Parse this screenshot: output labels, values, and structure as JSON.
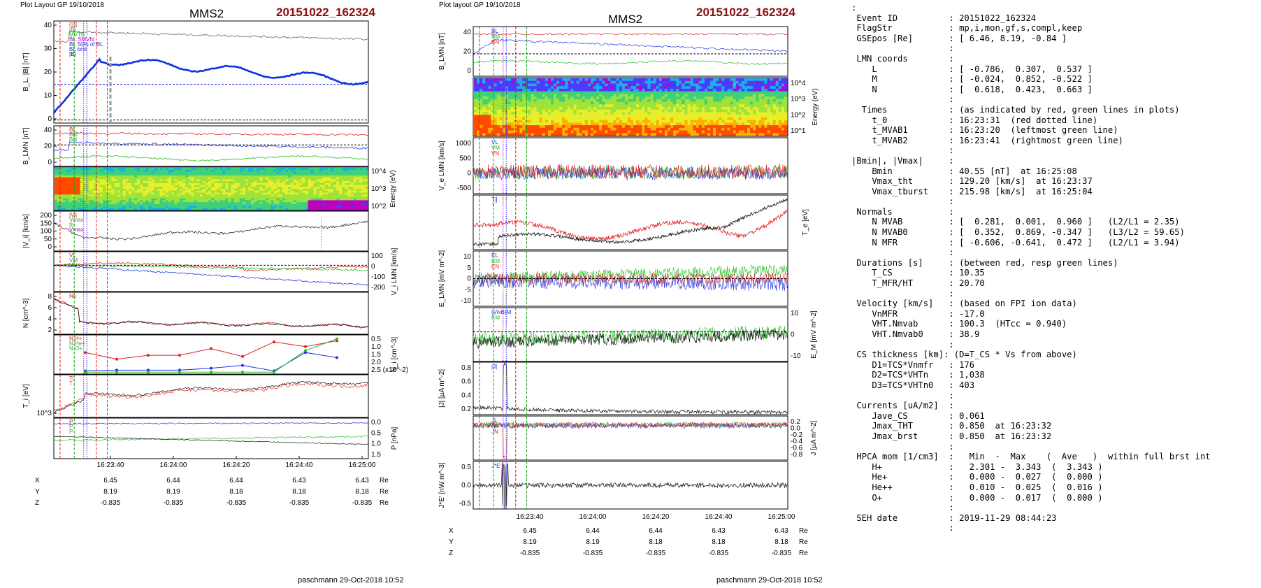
{
  "left": {
    "layout_label": "Plot Layout GP 19/10/2018",
    "mission": "MMS2",
    "event": "20151022_162324",
    "footer": "paschmann 29-Oct-2018 10:52",
    "panels": [
      {
        "id": "p1",
        "ylabel": "B_L, |B| [nT]",
        "ticks": [
          "0",
          "10",
          "20",
          "30",
          "40"
        ],
        "ymin": 0,
        "ymax": 48,
        "legend": [
          "GS",
          "|B|",
          "MVTB",
          "BL.SMVN",
          "BL 50% of BL",
          "BL brst",
          "|B|"
        ]
      },
      {
        "id": "p2",
        "ylabel": "B_LMN [nT]",
        "ticks": [
          "0",
          "20",
          "40"
        ],
        "ymin": -15,
        "ymax": 48,
        "legend": [
          "BL",
          "BM",
          "BN"
        ]
      },
      {
        "id": "p3",
        "ylabel": "Energy (eV)",
        "ticks_right": [
          "10^4",
          "10^3",
          "10^2"
        ],
        "spectrogram": true
      },
      {
        "id": "p4",
        "ylabel": "|V_i| [km/s]",
        "ticks": [
          "0",
          "50",
          "100",
          "150",
          "200"
        ],
        "ymin": -10,
        "ymax": 230,
        "legend": [
          "|Vi|",
          "Vmax",
          "tb",
          "Vmax"
        ]
      },
      {
        "id": "p5",
        "ylabel": "V_i LMN [km/s]",
        "ticks_right": [
          "100",
          "0",
          "-100",
          "-200"
        ],
        "ymin": -210,
        "ymax": 110,
        "legend": [
          "VL",
          "VM",
          "VN"
        ]
      },
      {
        "id": "p6",
        "ylabel": "N [cm^-3]",
        "ticks": [
          "2",
          "4",
          "6",
          "8"
        ],
        "ymin": 0,
        "ymax": 9,
        "legend": [
          "Ne"
        ]
      },
      {
        "id": "p7",
        "ylabel": "N_i [cm^-3]",
        "ticks_right": [
          "0.5",
          "1.0",
          "1.5",
          "2.0",
          "2.5 (x10^-2)"
        ],
        "ymin": 0,
        "ymax": 3,
        "legend": [
          "N H+",
          "N He+",
          "N O+"
        ]
      },
      {
        "id": "p8",
        "ylabel": "T_i [eV]",
        "ticks": [
          "10^3"
        ],
        "legend": [
          "Ti",
          "T"
        ]
      },
      {
        "id": "p9",
        "ylabel": "P [nPa]",
        "ticks_right": [
          "0.0",
          "0.5",
          "1.0",
          "1.5"
        ],
        "ymin": 0,
        "ymax": 1.7,
        "legend": [
          "P",
          "P",
          "P"
        ]
      }
    ],
    "time_ticks": [
      "16:23:40",
      "16:24:00",
      "16:24:20",
      "16:24:40",
      "16:25:00"
    ],
    "coords": {
      "X": [
        "6.45",
        "6.44",
        "6.44",
        "6.43",
        "6.43"
      ],
      "Y": [
        "8.19",
        "8.19",
        "8.18",
        "8.18",
        "8.18"
      ],
      "Z": [
        "-0.835",
        "-0.835",
        "-0.835",
        "-0.835",
        "-0.835"
      ],
      "unit": "Re"
    }
  },
  "middle": {
    "layout_label": "Plot layout GP 19/10/2018",
    "mission": "MMS2",
    "event": "20151022_162324",
    "footer": "paschmann 29-Oct-2018 10:52",
    "panels": [
      {
        "id": "m1",
        "ylabel": "B_LMN [nT]",
        "ticks": [
          "0",
          "20",
          "40"
        ],
        "legend": [
          "BL",
          "BM",
          "BN"
        ]
      },
      {
        "id": "m2",
        "ylabel": "Energy (eV)",
        "ticks_right": [
          "10^4",
          "10^3",
          "10^2",
          "10^1"
        ],
        "spectrogram": true
      },
      {
        "id": "m3",
        "ylabel": "V_e LMN [km/s]",
        "ticks": [
          "-500",
          "0",
          "500",
          "1000"
        ],
        "legend": [
          "VL",
          "VM",
          "VN"
        ]
      },
      {
        "id": "m4",
        "ylabel": "T_e [eV]",
        "legend": [
          "T∥",
          "T"
        ]
      },
      {
        "id": "m5",
        "ylabel": "E_LMN [mV m^-2]",
        "ticks": [
          "-10",
          "-5",
          "0",
          "5",
          "10"
        ],
        "legend": [
          "EL",
          "EM",
          "EN"
        ]
      },
      {
        "id": "m6",
        "ylabel": "E_M [mV m^-2]",
        "ticks_right": [
          "10",
          "0",
          "-10"
        ],
        "legend": [
          "(VixB)M",
          "EM"
        ]
      },
      {
        "id": "m7",
        "ylabel": "|J| [µA m^-2]",
        "ticks": [
          "0.2",
          "0.4",
          "0.6",
          "0.8"
        ],
        "legend": [
          "|J|"
        ]
      },
      {
        "id": "m8",
        "ylabel": "J [µA m^-2]",
        "ticks_right": [
          "0.2",
          "0.0",
          "-0.2",
          "-0.4",
          "-0.6",
          "-0.8"
        ],
        "legend": [
          "JL",
          "JM",
          "JN"
        ]
      },
      {
        "id": "m9",
        "ylabel": "J*E' [nW m^-3]",
        "ticks": [
          "-0.5",
          "0.0",
          "0.5"
        ],
        "legend": [
          "J*E'"
        ]
      }
    ],
    "time_ticks": [
      "16:23:40",
      "16:24:00",
      "16:24:20",
      "16:24:40",
      "16:25:00"
    ],
    "coords": {
      "X": [
        "6.45",
        "6.44",
        "6.44",
        "6.43",
        "6.43"
      ],
      "Y": [
        "8.19",
        "8.19",
        "8.18",
        "8.18",
        "8.18"
      ],
      "Z": [
        "-0.835",
        "-0.835",
        "-0.835",
        "-0.835",
        "-0.835"
      ],
      "unit": "Re"
    }
  },
  "info_lines": [
    ":",
    " Event ID          : 20151022_162324",
    " FlagStr           : mp,i,mon,gf,s,compl,keep",
    " GSEpos [Re]       : [ 6.46, 8.19, -0.84 ]",
    "                   :",
    " LMN coords        :",
    "    L              : [ -0.786,  0.307,  0.537 ]",
    "    M              : [ -0.024,  0.852, -0.522 ]",
    "    N              : [  0.618,  0.423,  0.663 ]",
    "                   :",
    "  Times            : (as indicated by red, green lines in plots)",
    "    t_0            : 16:23:31  (red dotted line)",
    "    t_MVAB1        : 16:23:20  (leftmost green line)",
    "    t_MVAB2        : 16:23:41  (rightmost green line)",
    "                   :",
    "|Bmin|, |Vmax|     :",
    "    Bmin           : 40.55 [nT]  at 16:25:08",
    "    Vmax_tht       : 129.20 [km/s]  at 16:23:37",
    "    Vmax_tburst    : 215.98 [km/s]  at 16:25:04",
    "                   :",
    " Normals           :",
    "    N MVAB         : [  0.281,  0.001,  0.960 ]   (L2/L1 = 2.35)",
    "    N MVAB0        : [  0.352,  0.869, -0.347 ]   (L3/L2 = 59.65)",
    "    N MFR          : [ -0.606, -0.641,  0.472 ]   (L2/L1 = 3.94)",
    "                   :",
    " Durations [s]     : (between red, resp green lines)",
    "    T_CS           : 10.35",
    "    T_MFR/HT       : 20.70",
    "                   :",
    " Velocity [km/s]   : (based on FPI ion data)",
    "    VnMFR          : -17.0",
    "    VHT.Nmvab      : 100.3  (HTcc = 0.940)",
    "    VHT.Nmvab0     : 38.9",
    "                   :",
    " CS thickness [km]: (D=T_CS * Vs from above)",
    "    D1=TCS*Vnmfr   : 176",
    "    D2=TCS*VHTn    : 1,038",
    "    D3=TCS*VHTn0   : 403",
    "                   :",
    " Currents [uA/m2]  :",
    "    Jave_CS        : 0.061",
    "    Jmax_THT       : 0.850  at 16:23:32",
    "    Jmax_brst      : 0.850  at 16:23:32",
    "                   :",
    " HPCA mom [1/cm3]  :   Min  -  Max    (  Ave   )  within full brst int",
    "    H+             :   2.301 -  3.343  (  3.343 )",
    "    He+            :   0.000 -  0.027  (  0.000 )",
    "    He++           :   0.010 -  0.025  (  0.016 )",
    "    O+             :   0.000 -  0.017  (  0.000 )",
    "                   :",
    " SEH date          : 2019-11-29 08:44:23",
    "                   :"
  ],
  "chart_data": [
    {
      "type": "line",
      "title": "MMS2 20151022_162324",
      "xlabel": "",
      "x": [
        "16:23:40",
        "16:24:00",
        "16:24:20",
        "16:24:40",
        "16:25:00"
      ],
      "series": [
        {
          "name": "|B|",
          "values": [
            44,
            45,
            44,
            42,
            40
          ]
        },
        {
          "name": "BL",
          "values": [
            30,
            22,
            19,
            18,
            13
          ]
        },
        {
          "name": "|Vi|",
          "values": [
            60,
            110,
            140,
            160,
            200
          ]
        },
        {
          "name": "N H+",
          "values": [
            1.3,
            1.5,
            1.7,
            2.1,
            2.3
          ]
        },
        {
          "name": "N He+",
          "values": [
            0.3,
            0.3,
            0.5,
            0.8,
            1.6
          ]
        }
      ]
    }
  ]
}
